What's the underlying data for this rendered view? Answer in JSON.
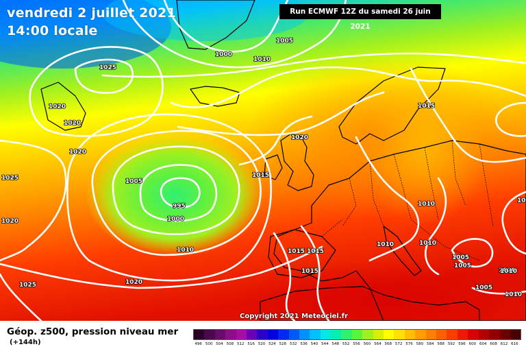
{
  "map": {
    "date": "vendredi 2 juillet 2021",
    "time": "14:00 locale",
    "run": "Run ECMWF 12Z du samedi 26 juin 2021",
    "copyright": "Copyright 2021 Meteociel.fr"
  },
  "legend": {
    "title": "Géop. z500, pression niveau mer",
    "subtitle": "(+144h)",
    "scale": [
      {
        "value": "496",
        "color": "#2a002a"
      },
      {
        "value": "500",
        "color": "#4a0a4a"
      },
      {
        "value": "504",
        "color": "#6a0a6a"
      },
      {
        "value": "508",
        "color": "#8a0e8a"
      },
      {
        "value": "512",
        "color": "#a010a0"
      },
      {
        "value": "516",
        "color": "#6a00b4"
      },
      {
        "value": "520",
        "color": "#2a00c8"
      },
      {
        "value": "524",
        "color": "#0000e0"
      },
      {
        "value": "528",
        "color": "#0028f0"
      },
      {
        "value": "532",
        "color": "#0058f8"
      },
      {
        "value": "536",
        "color": "#0090ff"
      },
      {
        "value": "540",
        "color": "#00c0ff"
      },
      {
        "value": "544",
        "color": "#00e8e8"
      },
      {
        "value": "548",
        "color": "#00f0b0"
      },
      {
        "value": "552",
        "color": "#30f070"
      },
      {
        "value": "556",
        "color": "#60f040"
      },
      {
        "value": "560",
        "color": "#a0f020"
      },
      {
        "value": "564",
        "color": "#d8f000"
      },
      {
        "value": "568",
        "color": "#ffff00"
      },
      {
        "value": "572",
        "color": "#ffe000"
      },
      {
        "value": "576",
        "color": "#ffc000"
      },
      {
        "value": "580",
        "color": "#ffa000"
      },
      {
        "value": "584",
        "color": "#ff8000"
      },
      {
        "value": "588",
        "color": "#ff6000"
      },
      {
        "value": "592",
        "color": "#ff3c00"
      },
      {
        "value": "596",
        "color": "#f01800"
      },
      {
        "value": "600",
        "color": "#d80000"
      },
      {
        "value": "604",
        "color": "#b40000"
      },
      {
        "value": "608",
        "color": "#900000"
      },
      {
        "value": "612",
        "color": "#6c0000"
      },
      {
        "value": "616",
        "color": "#4a0000"
      }
    ]
  },
  "isobar_labels": [
    "1005",
    "1000",
    "1010",
    "1025",
    "1020",
    "1020",
    "1020",
    "1025",
    "1020",
    "1005",
    "995",
    "1000",
    "1010",
    "1015",
    "1020",
    "1015",
    "1015",
    "1015",
    "1015",
    "1010",
    "1010",
    "1010",
    "1010",
    "1005",
    "1005",
    "1025",
    "1020",
    "1005",
    "1010",
    "1005",
    "1010"
  ]
}
